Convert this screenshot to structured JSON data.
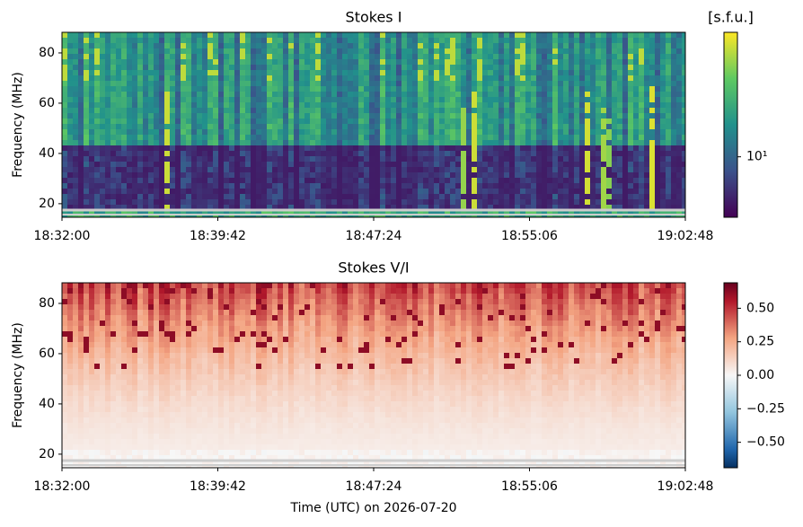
{
  "chart_data": [
    {
      "type": "heatmap",
      "title": "Stokes I",
      "ylabel": "Frequency (MHz)",
      "xlim": [
        "18:32:00",
        "19:02:48"
      ],
      "xticks": [
        "18:32:00",
        "18:39:42",
        "18:47:24",
        "18:55:06",
        "19:02:48"
      ],
      "ylim": [
        14.6,
        88.2
      ],
      "yticks": [
        20,
        40,
        60,
        80
      ],
      "colorbar": {
        "label": "[s.f.u.]",
        "scale": "log",
        "colormap": "viridis",
        "lim": [
          4,
          66
        ],
        "ticks": [
          {
            "value": 10,
            "label": "10¹"
          }
        ]
      }
    },
    {
      "type": "heatmap",
      "title": "Stokes V/I",
      "ylabel": "Frequency (MHz)",
      "xlabel": "Time (UTC) on 2026-07-20",
      "xlim": [
        "18:32:00",
        "19:02:48"
      ],
      "xticks": [
        "18:32:00",
        "18:39:42",
        "18:47:24",
        "18:55:06",
        "19:02:48"
      ],
      "ylim": [
        14.6,
        88.2
      ],
      "yticks": [
        20,
        40,
        60,
        80
      ],
      "colorbar": {
        "scale": "linear",
        "colormap": "RdBu_r",
        "lim": [
          -0.69,
          0.69
        ],
        "ticks": [
          {
            "value": 0.5,
            "label": "0.50"
          },
          {
            "value": 0.25,
            "label": "0.25"
          },
          {
            "value": 0,
            "label": "0.00"
          },
          {
            "value": -0.25,
            "label": "−0.25"
          },
          {
            "value": -0.5,
            "label": "−0.50"
          }
        ]
      }
    }
  ]
}
